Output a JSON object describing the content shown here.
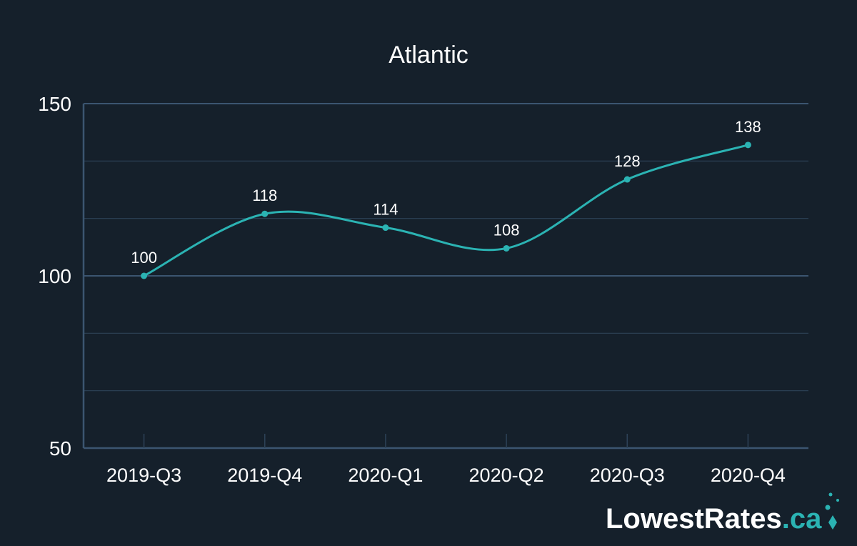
{
  "chart_data": {
    "type": "line",
    "title": "Atlantic",
    "categories": [
      "2019-Q3",
      "2019-Q4",
      "2020-Q1",
      "2020-Q2",
      "2020-Q3",
      "2020-Q4"
    ],
    "series": [
      {
        "values": [
          100,
          118,
          114,
          108,
          128,
          138
        ]
      }
    ],
    "ylim": [
      50,
      150
    ],
    "yticks": [
      "50",
      "100",
      "150"
    ],
    "data_labels": [
      "100",
      "118",
      "114",
      "108",
      "128",
      "138"
    ],
    "grid": true,
    "smooth": true,
    "xlabel": "",
    "ylabel": ""
  },
  "colors": {
    "background": "#15202b",
    "line": "#2bb3b3",
    "grid": "#2d4257",
    "axis": "#3b5570",
    "text": "#ffffff",
    "logo_accent": "#2bb3b3"
  },
  "logo": {
    "text": "LowestRates",
    "suffix": ".ca"
  }
}
